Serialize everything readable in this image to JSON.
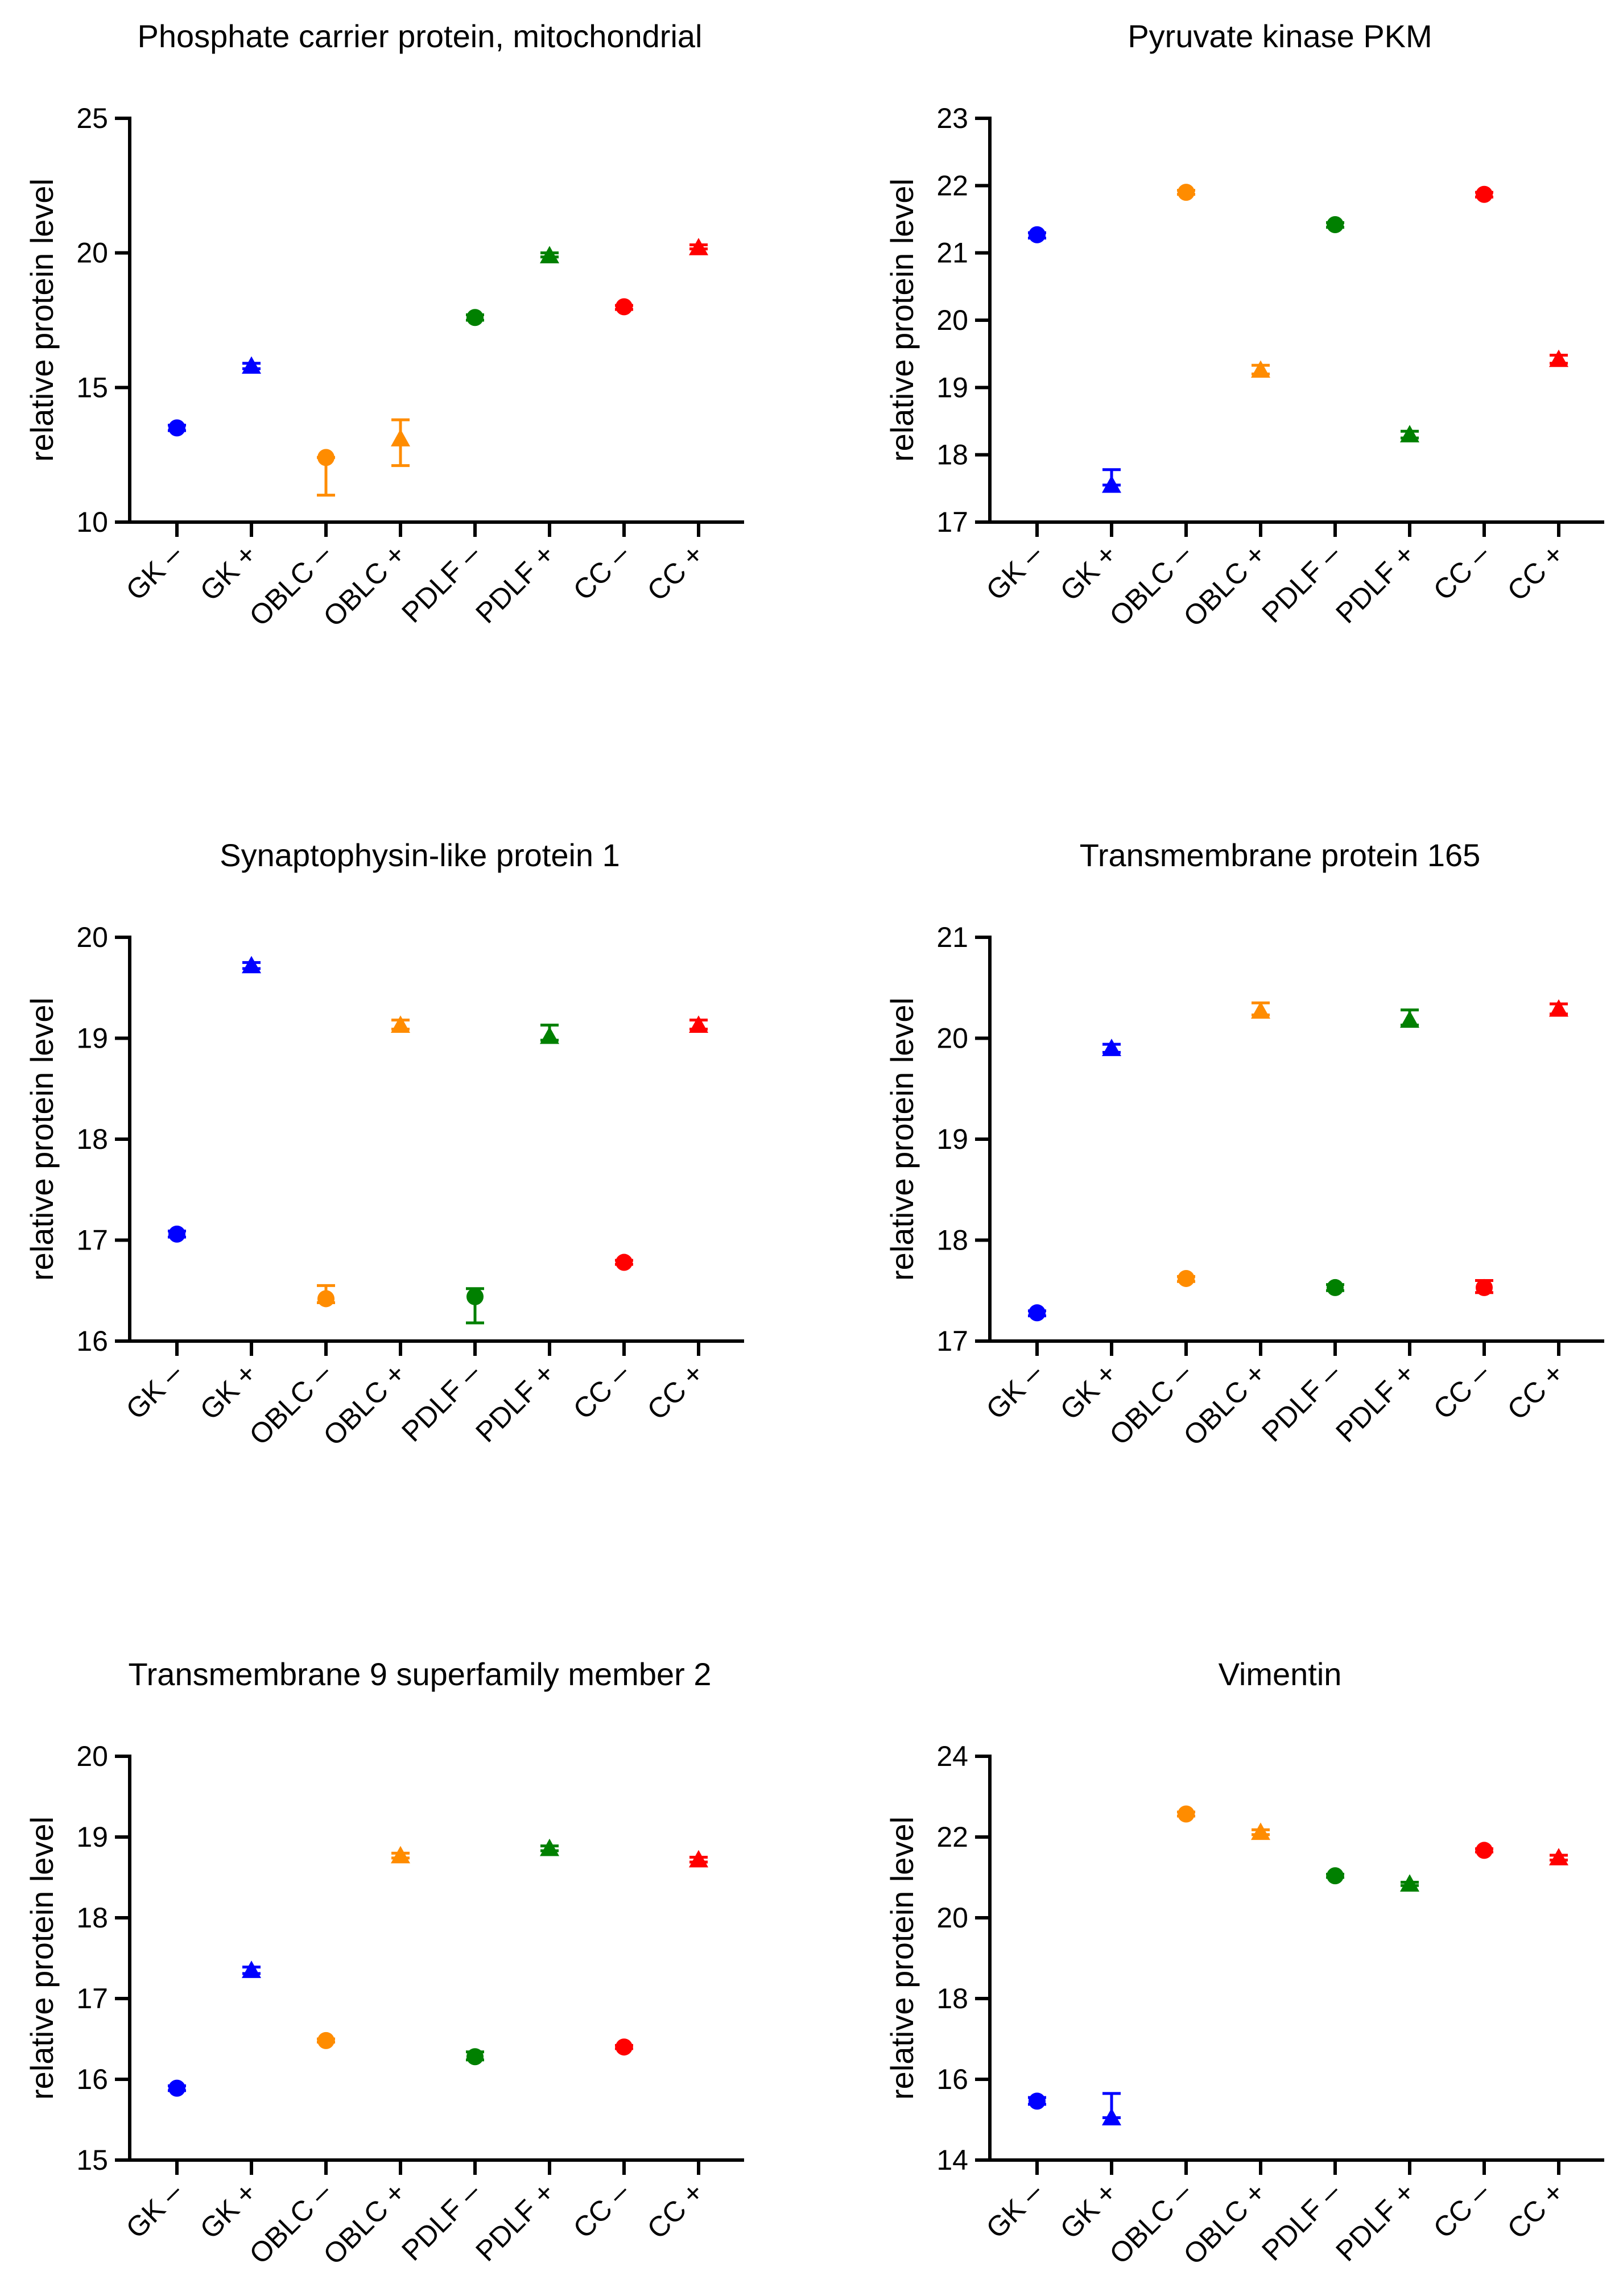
{
  "chart_data": [
    {
      "type": "scatter",
      "title": "Phosphate carrier protein, mitochondrial",
      "ylabel": "relative protein level",
      "xlabel": "",
      "categories": [
        "GK –",
        "GK +",
        "OBLC –",
        "OBLC +",
        "PDLF –",
        "PDLF +",
        "CC –",
        "CC +"
      ],
      "ylim": [
        10,
        25
      ],
      "yticks": [
        "10",
        "15",
        "20",
        "25"
      ],
      "points": [
        {
          "mean": 13.5,
          "lo": 13.4,
          "hi": 13.6
        },
        {
          "mean": 15.8,
          "lo": 15.7,
          "hi": 15.9
        },
        {
          "mean": 12.4,
          "lo": 11.0,
          "hi": 12.4
        },
        {
          "mean": 13.1,
          "lo": 12.1,
          "hi": 13.8
        },
        {
          "mean": 17.6,
          "lo": 17.5,
          "hi": 17.7
        },
        {
          "mean": 19.9,
          "lo": 19.85,
          "hi": 20.0
        },
        {
          "mean": 18.0,
          "lo": 17.9,
          "hi": 18.05
        },
        {
          "mean": 20.2,
          "lo": 20.15,
          "hi": 20.3
        }
      ]
    },
    {
      "type": "scatter",
      "title": "Pyruvate kinase PKM",
      "ylabel": "relative protein level",
      "xlabel": "",
      "categories": [
        "GK –",
        "GK +",
        "OBLC –",
        "OBLC +",
        "PDLF –",
        "PDLF +",
        "CC –",
        "CC +"
      ],
      "ylim": [
        17,
        23
      ],
      "yticks": [
        "17",
        "18",
        "19",
        "20",
        "21",
        "22",
        "23"
      ],
      "points": [
        {
          "mean": 21.27,
          "lo": 21.22,
          "hi": 21.3
        },
        {
          "mean": 17.55,
          "lo": 17.55,
          "hi": 17.78
        },
        {
          "mean": 21.9,
          "lo": 21.87,
          "hi": 21.93
        },
        {
          "mean": 19.26,
          "lo": 19.2,
          "hi": 19.33
        },
        {
          "mean": 21.42,
          "lo": 21.38,
          "hi": 21.45
        },
        {
          "mean": 18.3,
          "lo": 18.25,
          "hi": 18.35
        },
        {
          "mean": 21.87,
          "lo": 21.83,
          "hi": 21.9
        },
        {
          "mean": 19.42,
          "lo": 19.36,
          "hi": 19.48
        }
      ]
    },
    {
      "type": "scatter",
      "title": "Synaptophysin-like protein 1",
      "ylabel": "relative protein level",
      "xlabel": "",
      "categories": [
        "GK –",
        "GK +",
        "OBLC –",
        "OBLC +",
        "PDLF –",
        "PDLF +",
        "CC –",
        "CC +"
      ],
      "ylim": [
        16,
        20
      ],
      "yticks": [
        "16",
        "17",
        "18",
        "19",
        "20"
      ],
      "points": [
        {
          "mean": 17.06,
          "lo": 17.03,
          "hi": 17.09
        },
        {
          "mean": 19.72,
          "lo": 19.69,
          "hi": 19.75
        },
        {
          "mean": 16.42,
          "lo": 16.38,
          "hi": 16.55
        },
        {
          "mean": 19.13,
          "lo": 19.09,
          "hi": 19.18
        },
        {
          "mean": 16.44,
          "lo": 16.18,
          "hi": 16.52
        },
        {
          "mean": 19.02,
          "lo": 18.98,
          "hi": 19.13
        },
        {
          "mean": 16.78,
          "lo": 16.76,
          "hi": 16.8
        },
        {
          "mean": 19.13,
          "lo": 19.09,
          "hi": 19.18
        }
      ]
    },
    {
      "type": "scatter",
      "title": "Transmembrane protein 165",
      "ylabel": "relative protein level",
      "xlabel": "",
      "categories": [
        "GK –",
        "GK +",
        "OBLC –",
        "OBLC +",
        "PDLF –",
        "PDLF +",
        "CC –",
        "CC +"
      ],
      "ylim": [
        17,
        21
      ],
      "yticks": [
        "17",
        "18",
        "19",
        "20",
        "21"
      ],
      "points": [
        {
          "mean": 17.28,
          "lo": 17.25,
          "hi": 17.3
        },
        {
          "mean": 19.9,
          "lo": 19.86,
          "hi": 19.94
        },
        {
          "mean": 17.62,
          "lo": 17.59,
          "hi": 17.64
        },
        {
          "mean": 20.27,
          "lo": 20.23,
          "hi": 20.35
        },
        {
          "mean": 17.53,
          "lo": 17.5,
          "hi": 17.56
        },
        {
          "mean": 20.18,
          "lo": 20.13,
          "hi": 20.28
        },
        {
          "mean": 17.53,
          "lo": 17.48,
          "hi": 17.6
        },
        {
          "mean": 20.29,
          "lo": 20.24,
          "hi": 20.34
        }
      ]
    },
    {
      "type": "scatter",
      "title": "Transmembrane 9 superfamily member 2",
      "ylabel": "relative protein level",
      "xlabel": "",
      "categories": [
        "GK –",
        "GK +",
        "OBLC –",
        "OBLC +",
        "PDLF –",
        "PDLF +",
        "CC –",
        "CC +"
      ],
      "ylim": [
        15,
        20
      ],
      "yticks": [
        "15",
        "16",
        "17",
        "18",
        "19",
        "20"
      ],
      "points": [
        {
          "mean": 15.89,
          "lo": 15.86,
          "hi": 15.92
        },
        {
          "mean": 17.35,
          "lo": 17.31,
          "hi": 17.39
        },
        {
          "mean": 16.48,
          "lo": 16.46,
          "hi": 16.5
        },
        {
          "mean": 18.77,
          "lo": 18.74,
          "hi": 18.8
        },
        {
          "mean": 16.28,
          "lo": 16.24,
          "hi": 16.34
        },
        {
          "mean": 18.86,
          "lo": 18.83,
          "hi": 18.89
        },
        {
          "mean": 16.4,
          "lo": 16.38,
          "hi": 16.42
        },
        {
          "mean": 18.72,
          "lo": 18.69,
          "hi": 18.75
        }
      ]
    },
    {
      "type": "scatter",
      "title": "Vimentin",
      "ylabel": "relative protein level",
      "xlabel": "",
      "categories": [
        "GK –",
        "GK +",
        "OBLC –",
        "OBLC +",
        "PDLF –",
        "PDLF +",
        "CC –",
        "CC +"
      ],
      "ylim": [
        14,
        24
      ],
      "yticks": [
        "14",
        "16",
        "18",
        "20",
        "22",
        "24"
      ],
      "points": [
        {
          "mean": 15.46,
          "lo": 15.38,
          "hi": 15.55
        },
        {
          "mean": 15.05,
          "lo": 15.05,
          "hi": 15.65
        },
        {
          "mean": 22.57,
          "lo": 22.52,
          "hi": 22.62
        },
        {
          "mean": 22.12,
          "lo": 22.06,
          "hi": 22.18
        },
        {
          "mean": 21.04,
          "lo": 21.0,
          "hi": 21.08
        },
        {
          "mean": 20.84,
          "lo": 20.8,
          "hi": 20.88
        },
        {
          "mean": 21.67,
          "lo": 21.63,
          "hi": 21.71
        },
        {
          "mean": 21.49,
          "lo": 21.43,
          "hi": 21.55
        }
      ]
    }
  ],
  "style": {
    "group_colors": [
      "#0000ff",
      "#0000ff",
      "#ff8c00",
      "#ff8c00",
      "#008000",
      "#008000",
      "#ff0000",
      "#ff0000"
    ],
    "group_markers": [
      "circle",
      "triangle",
      "circle",
      "triangle",
      "circle",
      "triangle",
      "circle",
      "triangle"
    ],
    "axis_color": "#000000"
  }
}
